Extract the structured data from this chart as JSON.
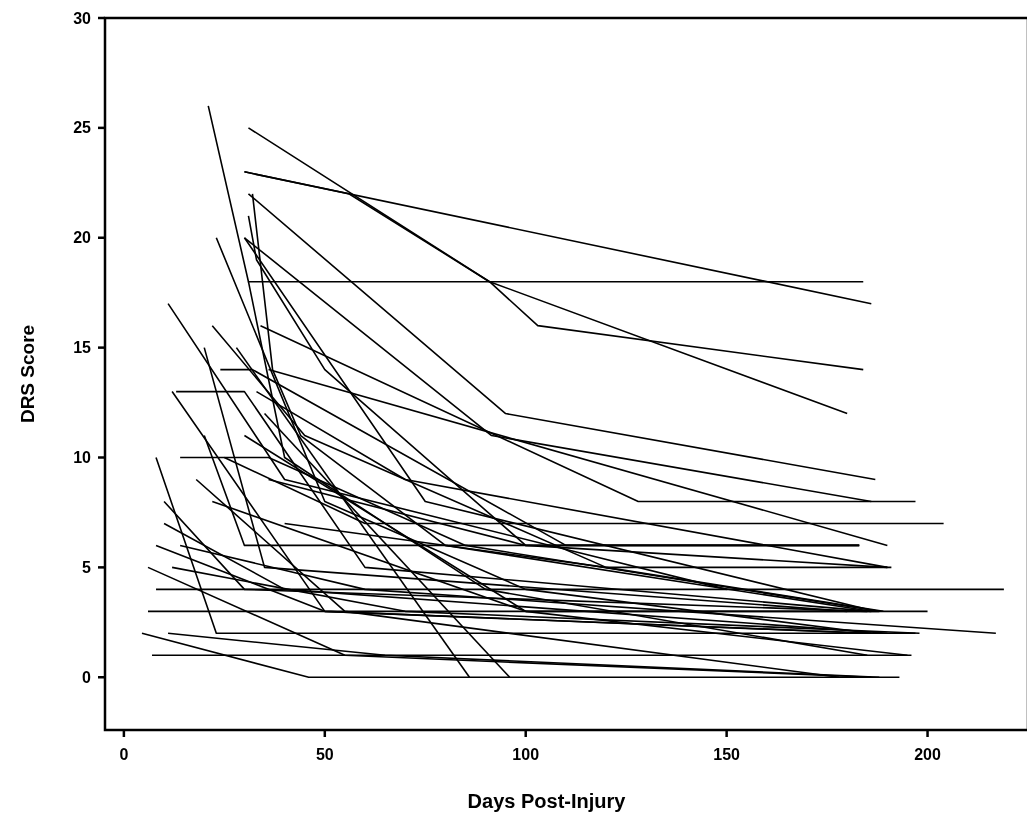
{
  "chart_data": {
    "type": "line",
    "xlabel": "Days Post-Injury",
    "ylabel": "DRS Score",
    "xlim": [
      -4.7,
      225
    ],
    "ylim": [
      -2.4,
      30
    ],
    "xticks": [
      0,
      50,
      100,
      150,
      200
    ],
    "yticks": [
      0,
      5,
      10,
      15,
      20,
      25,
      30
    ],
    "line_style": "solid",
    "series": [
      {
        "color": "#000000",
        "x": [
          21,
          31,
          184
        ],
        "values": [
          26,
          18,
          18
        ]
      },
      {
        "color": "#000000",
        "x": [
          31,
          91,
          103,
          184
        ],
        "values": [
          25,
          18,
          16,
          14
        ]
      },
      {
        "color": "#000000",
        "x": [
          30,
          56,
          91,
          180
        ],
        "values": [
          23,
          22,
          18,
          12
        ]
      },
      {
        "color": "#000000",
        "x": [
          30,
          186
        ],
        "values": [
          23,
          17
        ]
      },
      {
        "color": "#000000",
        "x": [
          31,
          95,
          187
        ],
        "values": [
          22,
          12,
          9
        ]
      },
      {
        "color": "#000000",
        "x": [
          30,
          91.5,
          186
        ],
        "values": [
          20,
          11,
          8
        ]
      },
      {
        "color": "#000000",
        "x": [
          34,
          128,
          197
        ],
        "values": [
          16,
          8,
          8
        ]
      },
      {
        "color": "#000000",
        "x": [
          36,
          190
        ],
        "values": [
          14,
          6
        ]
      },
      {
        "color": "#000000",
        "x": [
          11,
          40,
          150
        ],
        "values": [
          17,
          9,
          4
        ]
      },
      {
        "color": "#000000",
        "x": [
          13,
          30,
          60,
          186
        ],
        "values": [
          13,
          13,
          5,
          3
        ]
      },
      {
        "color": "#000000",
        "x": [
          12,
          50,
          185
        ],
        "values": [
          13,
          3,
          2
        ]
      },
      {
        "color": "#000000",
        "x": [
          14,
          36,
          85,
          188
        ],
        "values": [
          10,
          10,
          6,
          3
        ]
      },
      {
        "color": "#000000",
        "x": [
          8,
          23,
          197
        ],
        "values": [
          10,
          2,
          2
        ]
      },
      {
        "color": "#000000",
        "x": [
          20,
          30,
          183
        ],
        "values": [
          11,
          6,
          6
        ]
      },
      {
        "color": "#000000",
        "x": [
          10,
          30,
          185
        ],
        "values": [
          8,
          4,
          3
        ]
      },
      {
        "color": "#000000",
        "x": [
          10,
          40,
          190
        ],
        "values": [
          7,
          4,
          2
        ]
      },
      {
        "color": "#000000",
        "x": [
          8,
          50,
          186
        ],
        "values": [
          6,
          3,
          2
        ]
      },
      {
        "color": "#000000",
        "x": [
          6,
          55,
          186
        ],
        "values": [
          5,
          1,
          0
        ]
      },
      {
        "color": "#000000",
        "x": [
          8,
          219
        ],
        "values": [
          4,
          4
        ]
      },
      {
        "color": "#000000",
        "x": [
          6,
          200
        ],
        "values": [
          3,
          3
        ]
      },
      {
        "color": "#000000",
        "x": [
          4.5,
          46,
          193
        ],
        "values": [
          2,
          0,
          0
        ]
      },
      {
        "color": "#000000",
        "x": [
          11,
          65,
          188
        ],
        "values": [
          2,
          1,
          0
        ]
      },
      {
        "color": "#000000",
        "x": [
          7,
          196
        ],
        "values": [
          1,
          1
        ]
      },
      {
        "color": "#000000",
        "x": [
          20,
          35,
          180
        ],
        "values": [
          15,
          5,
          3
        ]
      },
      {
        "color": "#000000",
        "x": [
          23,
          50,
          100,
          186
        ],
        "values": [
          20,
          8,
          4,
          2
        ]
      },
      {
        "color": "#000000",
        "x": [
          22,
          45,
          120,
          189
        ],
        "values": [
          16,
          11,
          5,
          3
        ]
      },
      {
        "color": "#000000",
        "x": [
          24,
          32,
          110,
          183
        ],
        "values": [
          14,
          14,
          6,
          6
        ]
      },
      {
        "color": "#000000",
        "x": [
          32,
          37,
          44,
          80,
          186
        ],
        "values": [
          22,
          14,
          11,
          6,
          3
        ]
      },
      {
        "color": "#000000",
        "x": [
          31,
          33,
          50,
          100,
          190
        ],
        "values": [
          21,
          19,
          14,
          6,
          5
        ]
      },
      {
        "color": "#000000",
        "x": [
          30,
          75,
          187
        ],
        "values": [
          20,
          8,
          3
        ]
      },
      {
        "color": "#000000",
        "x": [
          31,
          40,
          90,
          185
        ],
        "values": [
          18,
          10,
          4,
          1
        ]
      },
      {
        "color": "#000000",
        "x": [
          28,
          86
        ],
        "values": [
          15,
          0
        ]
      },
      {
        "color": "#000000",
        "x": [
          35,
          96
        ],
        "values": [
          12,
          0
        ]
      },
      {
        "color": "#000000",
        "x": [
          25,
          60,
          127,
          204
        ],
        "values": [
          10,
          7,
          7,
          7
        ]
      },
      {
        "color": "#000000",
        "x": [
          36,
          100,
          183
        ],
        "values": [
          9,
          6,
          6
        ]
      },
      {
        "color": "#000000",
        "x": [
          40,
          120,
          191
        ],
        "values": [
          7,
          5,
          5
        ]
      },
      {
        "color": "#000000",
        "x": [
          12,
          70,
          198
        ],
        "values": [
          5,
          3,
          2
        ]
      },
      {
        "color": "#000000",
        "x": [
          14,
          60,
          217
        ],
        "values": [
          6,
          4,
          2
        ]
      },
      {
        "color": "#000000",
        "x": [
          30,
          100,
          195
        ],
        "values": [
          11,
          3,
          1
        ]
      },
      {
        "color": "#000000",
        "x": [
          18,
          55,
          178
        ],
        "values": [
          9,
          3,
          0
        ]
      },
      {
        "color": "#000000",
        "x": [
          22,
          100,
          188
        ],
        "values": [
          8,
          3,
          3
        ]
      },
      {
        "color": "#000000",
        "x": [
          33,
          70,
          190
        ],
        "values": [
          13,
          9,
          5
        ]
      }
    ]
  }
}
